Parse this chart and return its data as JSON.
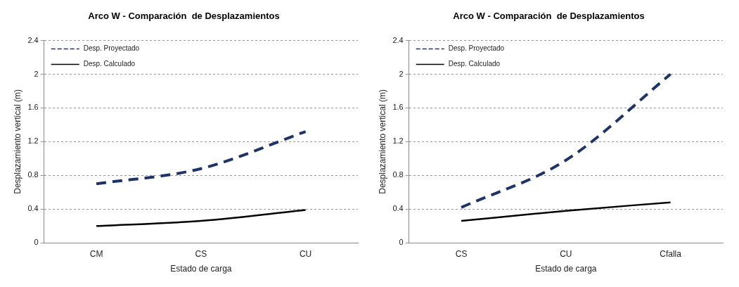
{
  "chart_data": [
    {
      "type": "line",
      "title": "Arco W - Comparación  de Desplazamientos",
      "xlabel": "Estado de carga",
      "ylabel": "Desplazamiento vertical (m)",
      "categories": [
        "CM",
        "CS",
        "CU"
      ],
      "series": [
        {
          "name": "Desp. Proyectado",
          "color": "#1f3366",
          "values": [
            0.7,
            0.88,
            1.32
          ],
          "line_style": "dashed"
        },
        {
          "name": "Desp. Calculado",
          "color": "#000000",
          "values": [
            0.2,
            0.26,
            0.39
          ],
          "line_style": "solid"
        }
      ],
      "ylim": [
        0,
        2.4
      ],
      "yticks": [
        0,
        0.4,
        0.8,
        1.2,
        1.6,
        2,
        2.4
      ],
      "grid": "y",
      "legend": "top left",
      "marker": "none"
    },
    {
      "type": "line",
      "title": "Arco W - Comparación  de Desplazamientos",
      "xlabel": "Estado de carga",
      "ylabel": "Desplazamiento vertical (m)",
      "categories": [
        "CS",
        "CU",
        "Cfalla"
      ],
      "series": [
        {
          "name": "Desp. Proyectado",
          "color": "#1f3366",
          "values": [
            0.42,
            0.98,
            2.0
          ],
          "line_style": "dashed"
        },
        {
          "name": "Desp. Calculado",
          "color": "#000000",
          "values": [
            0.26,
            0.38,
            0.48
          ],
          "line_style": "solid"
        }
      ],
      "ylim": [
        0,
        2.4
      ],
      "yticks": [
        0,
        0.4,
        0.8,
        1.2,
        1.6,
        2,
        2.4
      ],
      "grid": "y",
      "legend": "top left",
      "marker": "none"
    }
  ]
}
